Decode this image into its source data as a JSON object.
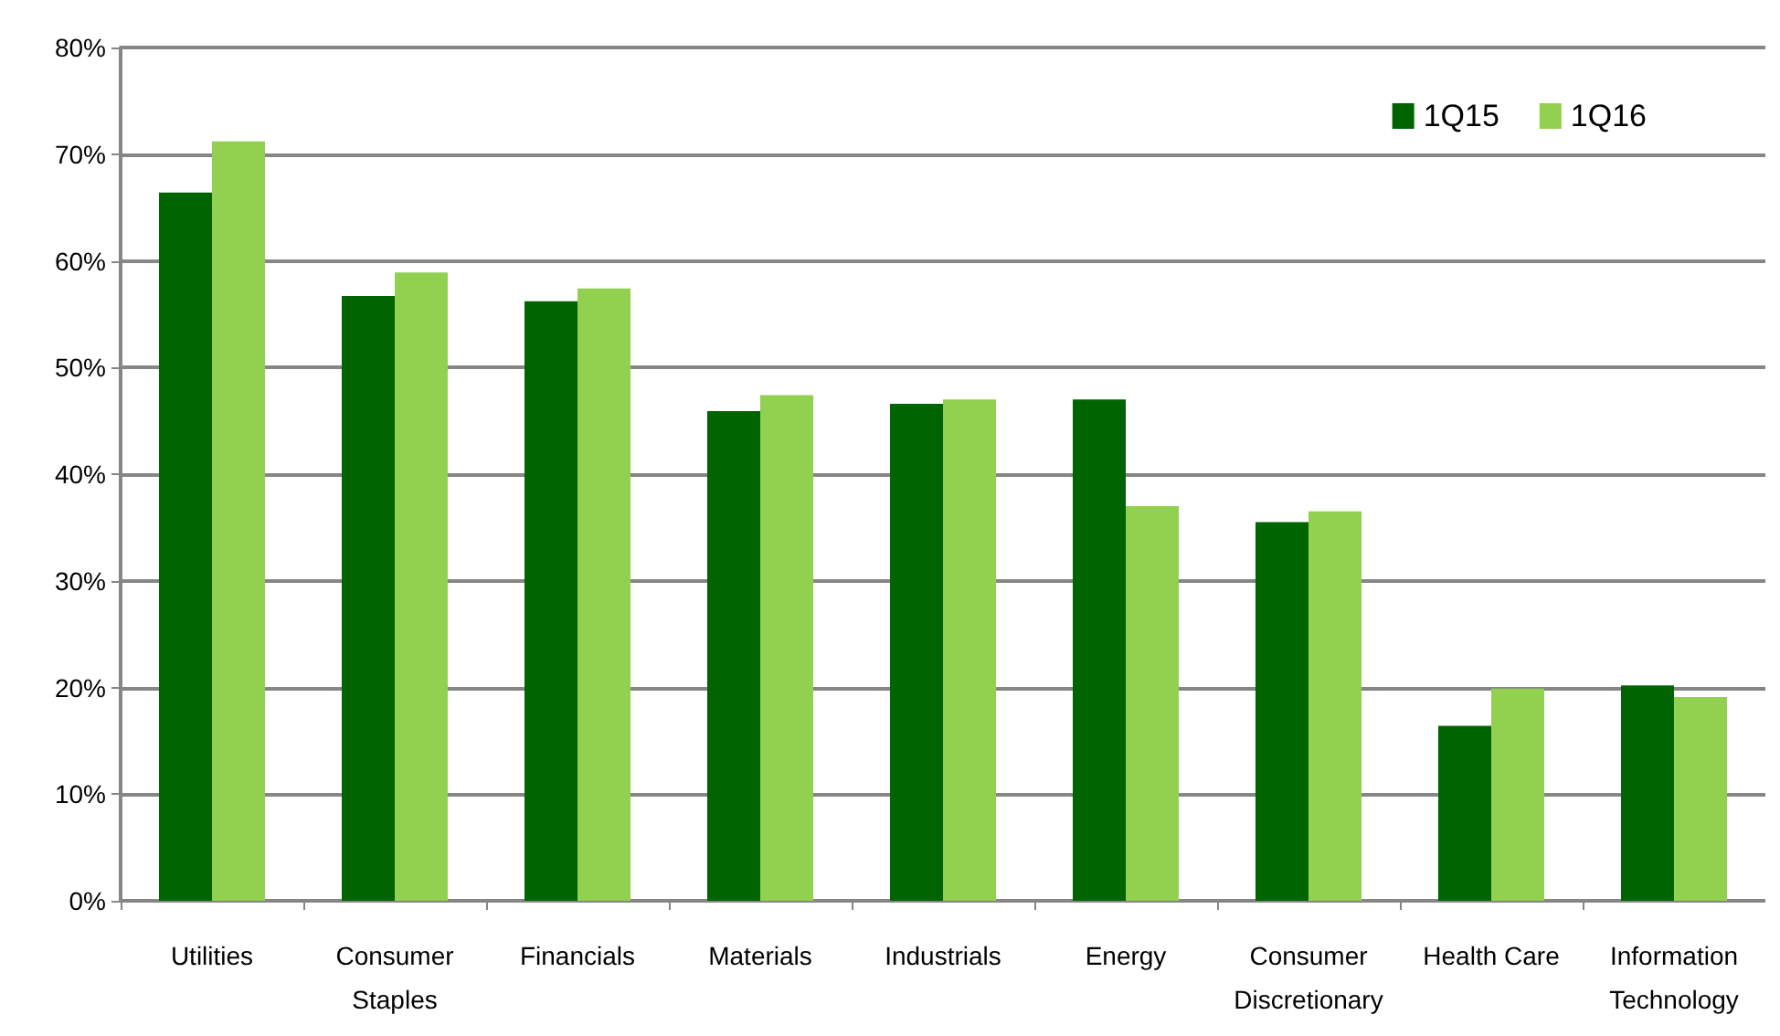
{
  "chart_data": {
    "type": "bar",
    "categories": [
      "Utilities",
      "Consumer\nStaples",
      "Financials",
      "Materials",
      "Industrials",
      "Energy",
      "Consumer\nDiscretionary",
      "Health Care",
      "Information\nTechnology"
    ],
    "series": [
      {
        "name": "1Q15",
        "color": "#006400",
        "values": [
          66.4,
          56.7,
          56.2,
          45.9,
          46.6,
          47.0,
          35.5,
          16.4,
          20.2
        ]
      },
      {
        "name": "1Q16",
        "color": "#92d050",
        "values": [
          71.2,
          58.9,
          57.4,
          47.4,
          47.0,
          37.0,
          36.5,
          19.9,
          19.1
        ]
      }
    ],
    "ylim": [
      0,
      80
    ],
    "yticks": [
      {
        "value": 0,
        "label": "0%"
      },
      {
        "value": 10,
        "label": "10%"
      },
      {
        "value": 20,
        "label": "20%"
      },
      {
        "value": 30,
        "label": "30%"
      },
      {
        "value": 40,
        "label": "40%"
      },
      {
        "value": 50,
        "label": "50%"
      },
      {
        "value": 60,
        "label": "60%"
      },
      {
        "value": 70,
        "label": "70%"
      },
      {
        "value": 80,
        "label": "80%"
      }
    ],
    "grid": "y",
    "legend": "top right"
  }
}
